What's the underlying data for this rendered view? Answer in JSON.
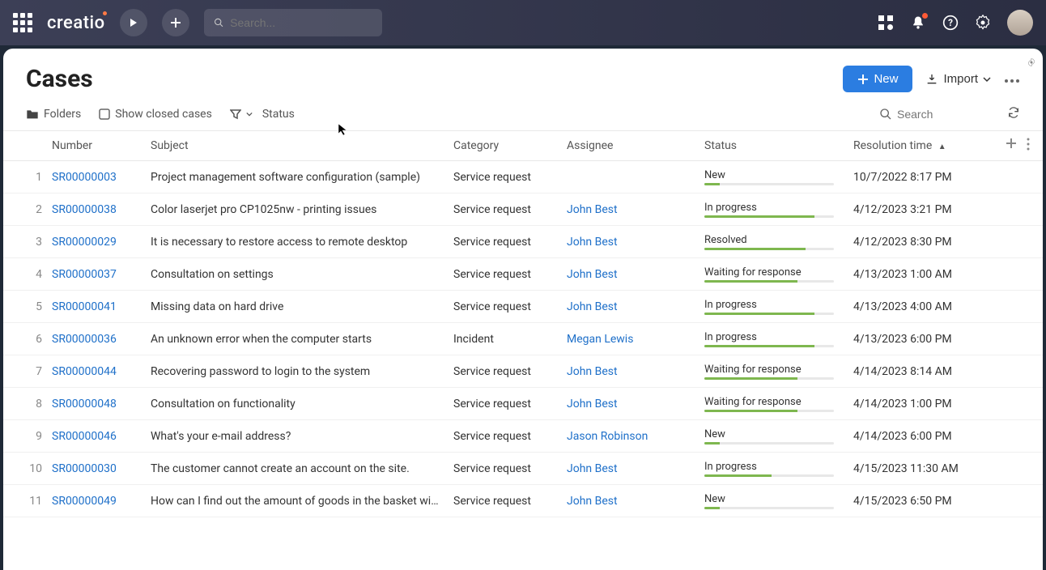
{
  "colors": {
    "accent": "#2b7de1",
    "link": "#1f70c9",
    "progress": "#7eb74f",
    "topbar_bg": "#2b2e42"
  },
  "topbar": {
    "logo": "creatio",
    "search_placeholder": "Search..."
  },
  "page": {
    "title": "Cases"
  },
  "header": {
    "new_label": "New",
    "import_label": "Import"
  },
  "toolbar": {
    "folders": "Folders",
    "show_closed": "Show closed cases",
    "status": "Status",
    "search_placeholder": "Search"
  },
  "columns": {
    "number": "Number",
    "subject": "Subject",
    "category": "Category",
    "assignee": "Assignee",
    "status": "Status",
    "resolution": "Resolution time"
  },
  "rows": [
    {
      "idx": "1",
      "number": "SR00000003",
      "subject": "Project management software configuration (sample)",
      "category": "Service request",
      "assignee": "",
      "status": "New",
      "progress": 12,
      "resolution": "10/7/2022 8:17 PM"
    },
    {
      "idx": "2",
      "number": "SR00000038",
      "subject": "Color laserjet pro CP1025nw - printing issues",
      "category": "Service request",
      "assignee": "John Best",
      "status": "In progress",
      "progress": 85,
      "resolution": "4/12/2023 3:21 PM"
    },
    {
      "idx": "3",
      "number": "SR00000029",
      "subject": "It is necessary to restore access to remote desktop",
      "category": "Service request",
      "assignee": "John Best",
      "status": "Resolved",
      "progress": 78,
      "resolution": "4/12/2023 8:30 PM"
    },
    {
      "idx": "4",
      "number": "SR00000037",
      "subject": "Consultation on settings",
      "category": "Service request",
      "assignee": "John Best",
      "status": "Waiting for response",
      "progress": 72,
      "resolution": "4/13/2023 1:00 AM"
    },
    {
      "idx": "5",
      "number": "SR00000041",
      "subject": "Missing data on hard drive",
      "category": "Service request",
      "assignee": "John Best",
      "status": "In progress",
      "progress": 85,
      "resolution": "4/13/2023 4:00 AM"
    },
    {
      "idx": "6",
      "number": "SR00000036",
      "subject": "An unknown error when the computer starts",
      "category": "Incident",
      "assignee": "Megan Lewis",
      "status": "In progress",
      "progress": 85,
      "resolution": "4/13/2023 6:00 PM"
    },
    {
      "idx": "7",
      "number": "SR00000044",
      "subject": "Recovering password to login to the system",
      "category": "Service request",
      "assignee": "John Best",
      "status": "Waiting for response",
      "progress": 72,
      "resolution": "4/14/2023 8:14 AM"
    },
    {
      "idx": "8",
      "number": "SR00000048",
      "subject": "Consultation on functionality",
      "category": "Service request",
      "assignee": "John Best",
      "status": "Waiting for response",
      "progress": 72,
      "resolution": "4/14/2023 1:00 PM"
    },
    {
      "idx": "9",
      "number": "SR00000046",
      "subject": "What's your e-mail address?",
      "category": "Service request",
      "assignee": "Jason Robinson",
      "status": "New",
      "progress": 12,
      "resolution": "4/14/2023 6:00 PM"
    },
    {
      "idx": "10",
      "number": "SR00000030",
      "subject": "The customer cannot create an account on the site.",
      "category": "Service request",
      "assignee": "John Best",
      "status": "In progress",
      "progress": 52,
      "resolution": "4/15/2023 11:30 AM"
    },
    {
      "idx": "11",
      "number": "SR00000049",
      "subject": "How can I find out the amount of goods in the basket without going into it?",
      "category": "Service request",
      "assignee": "John Best",
      "status": "New",
      "progress": 12,
      "resolution": "4/15/2023 6:50 PM"
    }
  ]
}
